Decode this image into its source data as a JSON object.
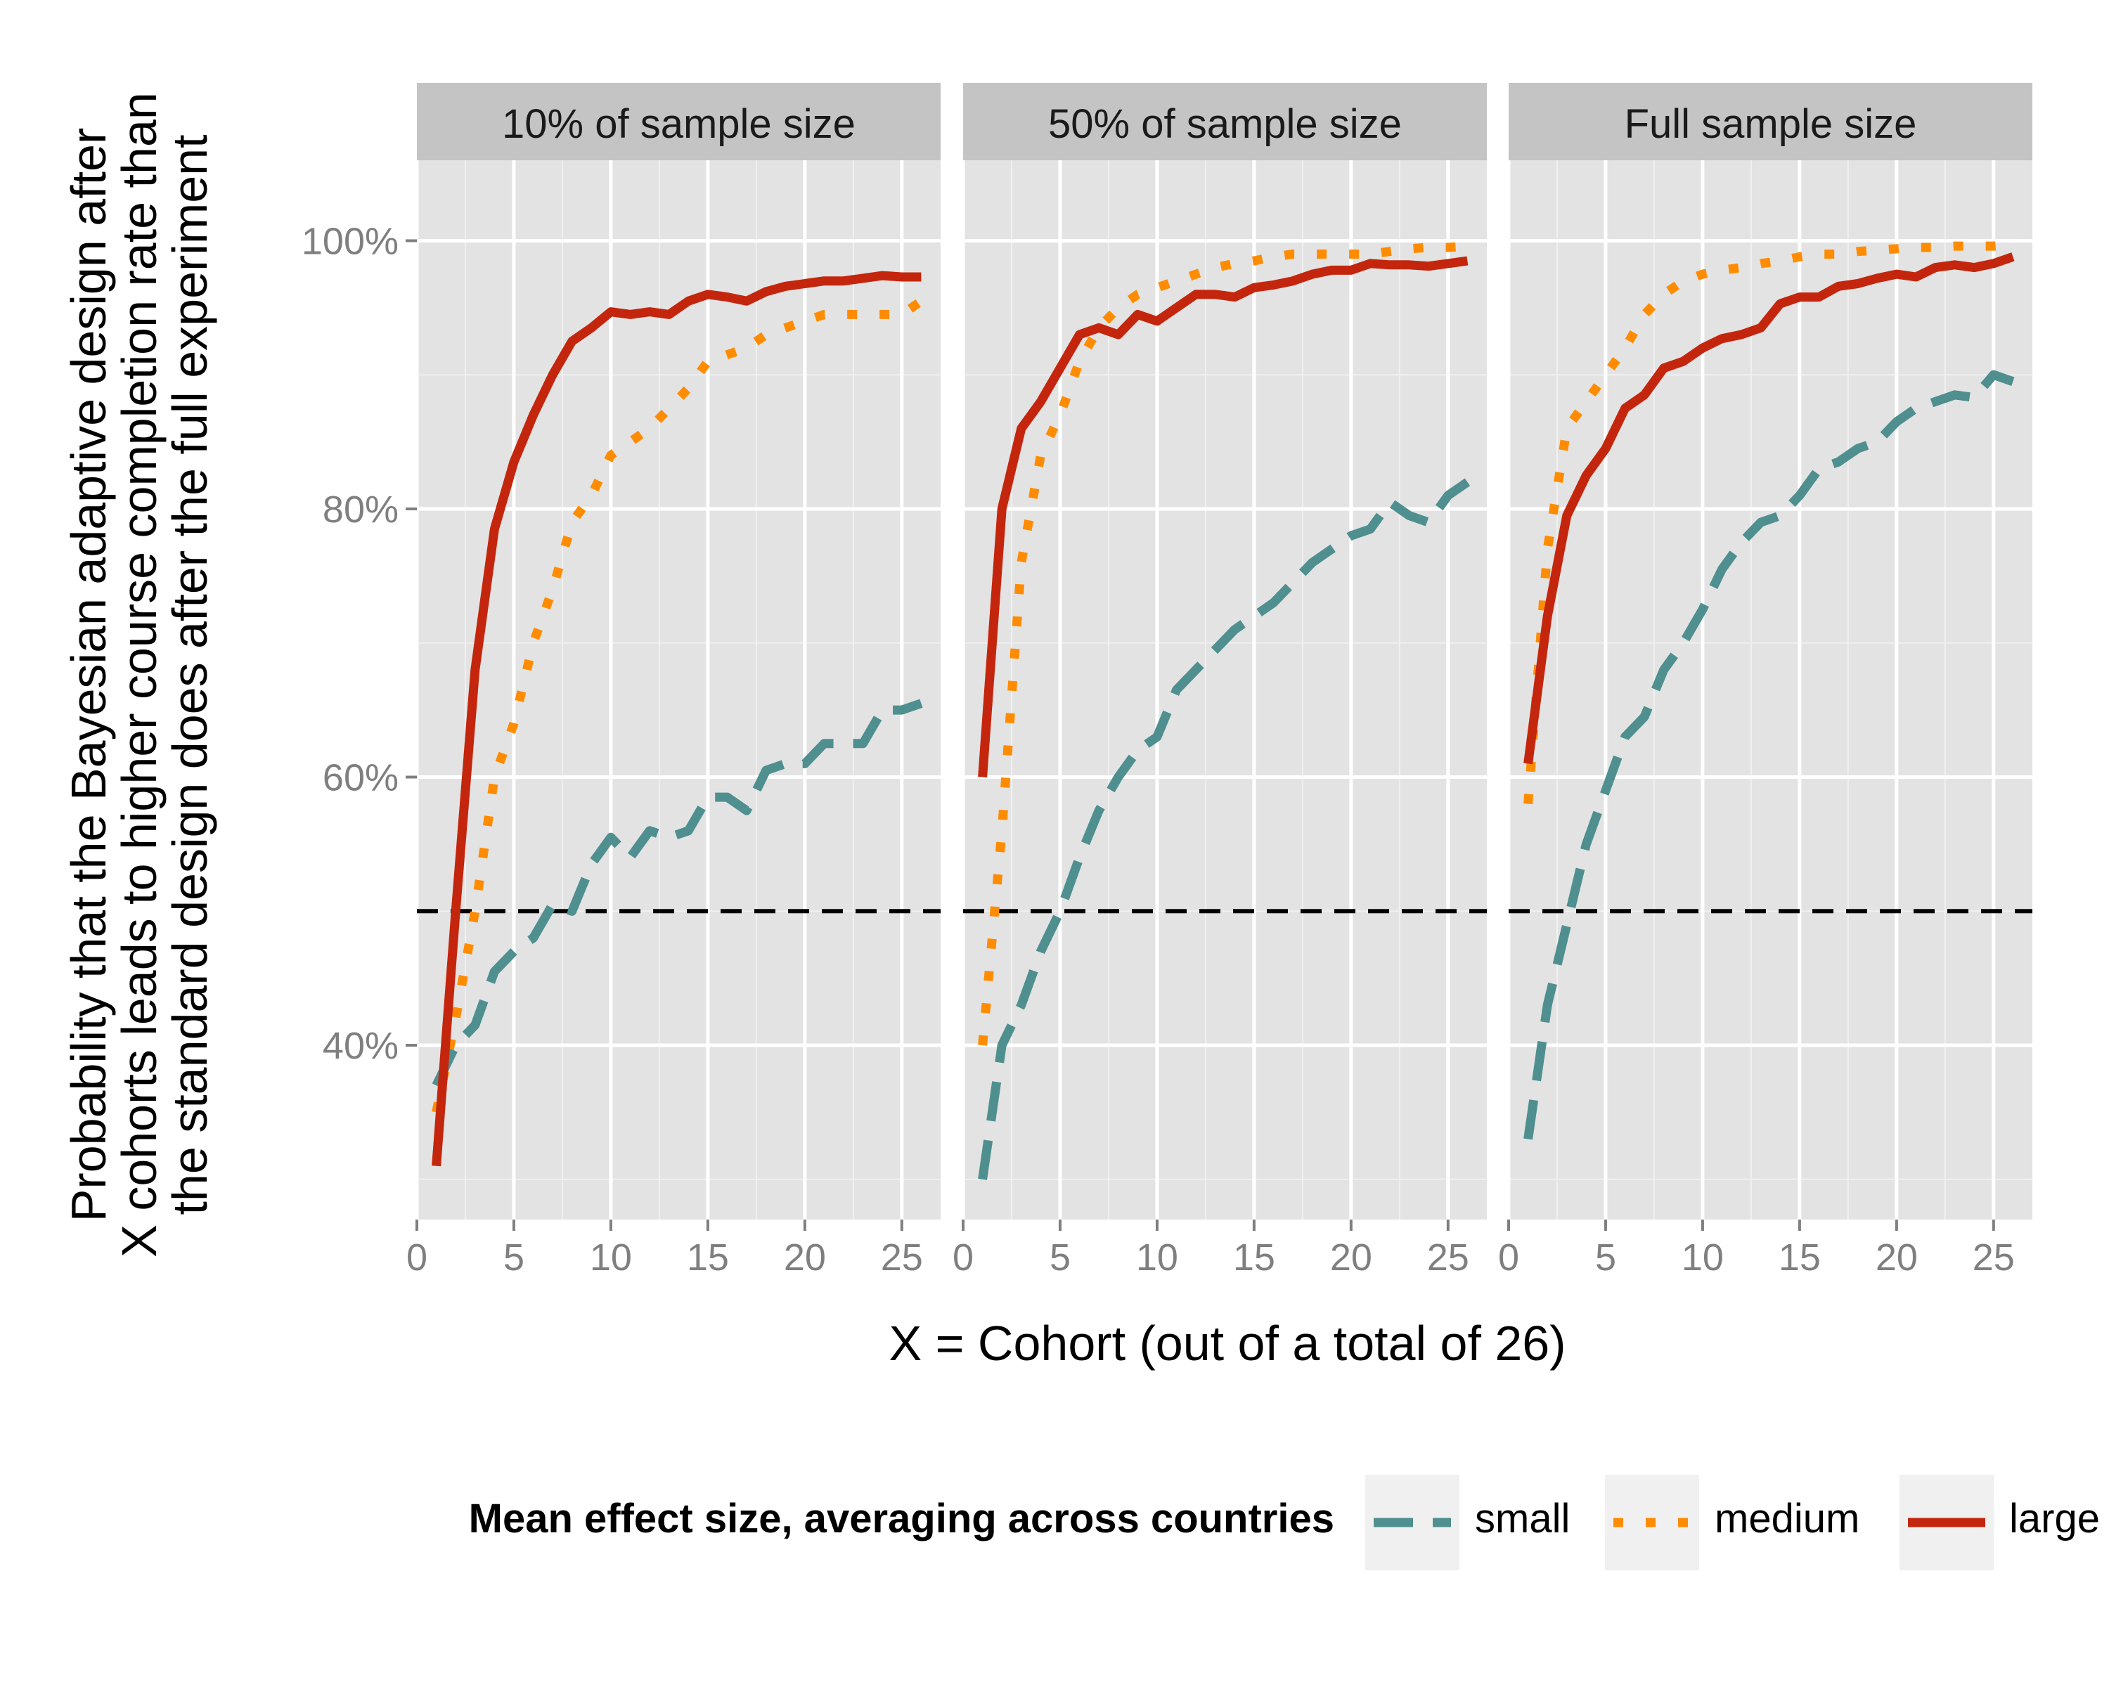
{
  "chart_data": {
    "type": "line",
    "xlabel": "X = Cohort (out of a total of 26)",
    "ylabel_lines": [
      "Probability that the Bayesian adaptive design after",
      "X cohorts leads to higher course completion rate than",
      "the standard design does after the full experiment"
    ],
    "xlim": [
      0,
      27
    ],
    "ylim": [
      0.27,
      1.06
    ],
    "x_ticks": [
      0,
      5,
      10,
      15,
      20,
      25
    ],
    "y_ticks": [
      0.4,
      0.6,
      0.8,
      1.0
    ],
    "y_tick_labels": [
      "40%",
      "60%",
      "80%",
      "100%"
    ],
    "reference_line": {
      "y": 0.5,
      "style": "dashed"
    },
    "legend": {
      "title": "Mean effect size, averaging across countries",
      "position": "bottom"
    },
    "x": [
      1,
      2,
      3,
      4,
      5,
      6,
      7,
      8,
      9,
      10,
      11,
      12,
      13,
      14,
      15,
      16,
      17,
      18,
      19,
      20,
      21,
      22,
      23,
      24,
      25,
      26
    ],
    "panels": [
      {
        "title": "10% of sample size",
        "series": [
          {
            "name": "small",
            "color": "#4f8f8f",
            "dash": "dashed",
            "values": [
              0.37,
              0.4,
              0.415,
              0.455,
              0.47,
              0.48,
              0.505,
              0.5,
              0.535,
              0.555,
              0.54,
              0.56,
              0.555,
              0.56,
              0.585,
              0.585,
              0.575,
              0.605,
              0.61,
              0.61,
              0.625,
              0.625,
              0.625,
              0.65,
              0.65,
              0.655
            ]
          },
          {
            "name": "medium",
            "color": "#ff8c00",
            "dash": "dotted",
            "values": [
              0.35,
              0.42,
              0.5,
              0.6,
              0.64,
              0.7,
              0.74,
              0.79,
              0.81,
              0.84,
              0.85,
              0.86,
              0.875,
              0.89,
              0.91,
              0.915,
              0.92,
              0.93,
              0.935,
              0.94,
              0.945,
              0.945,
              0.945,
              0.945,
              0.945,
              0.955
            ]
          },
          {
            "name": "large",
            "color": "#c4260d",
            "dash": "solid",
            "values": [
              0.31,
              0.5,
              0.68,
              0.785,
              0.835,
              0.87,
              0.9,
              0.925,
              0.935,
              0.947,
              0.945,
              0.947,
              0.945,
              0.955,
              0.96,
              0.958,
              0.955,
              0.962,
              0.966,
              0.968,
              0.97,
              0.97,
              0.972,
              0.974,
              0.973,
              0.973
            ]
          }
        ]
      },
      {
        "title": "50% of sample size",
        "series": [
          {
            "name": "small",
            "color": "#4f8f8f",
            "dash": "dashed",
            "values": [
              0.3,
              0.4,
              0.43,
              0.47,
              0.5,
              0.54,
              0.575,
              0.6,
              0.62,
              0.63,
              0.665,
              0.68,
              0.695,
              0.71,
              0.72,
              0.73,
              0.745,
              0.76,
              0.77,
              0.78,
              0.785,
              0.805,
              0.795,
              0.79,
              0.81,
              0.82
            ]
          },
          {
            "name": "medium",
            "color": "#ff8c00",
            "dash": "dotted",
            "values": [
              0.4,
              0.56,
              0.76,
              0.84,
              0.87,
              0.91,
              0.935,
              0.95,
              0.96,
              0.965,
              0.97,
              0.975,
              0.98,
              0.983,
              0.985,
              0.988,
              0.99,
              0.99,
              0.99,
              0.99,
              0.99,
              0.992,
              0.994,
              0.995,
              0.995,
              0.996
            ]
          },
          {
            "name": "large",
            "color": "#c4260d",
            "dash": "solid",
            "values": [
              0.6,
              0.8,
              0.86,
              0.88,
              0.905,
              0.93,
              0.935,
              0.93,
              0.945,
              0.94,
              0.95,
              0.96,
              0.96,
              0.958,
              0.965,
              0.967,
              0.97,
              0.975,
              0.978,
              0.978,
              0.983,
              0.982,
              0.982,
              0.981,
              0.983,
              0.985
            ]
          }
        ]
      },
      {
        "title": "Full sample size",
        "series": [
          {
            "name": "small",
            "color": "#4f8f8f",
            "dash": "dashed",
            "values": [
              0.33,
              0.43,
              0.49,
              0.55,
              0.59,
              0.63,
              0.645,
              0.68,
              0.7,
              0.725,
              0.755,
              0.775,
              0.79,
              0.795,
              0.81,
              0.83,
              0.835,
              0.845,
              0.85,
              0.865,
              0.875,
              0.88,
              0.885,
              0.883,
              0.9,
              0.895
            ]
          },
          {
            "name": "medium",
            "color": "#ff8c00",
            "dash": "dotted",
            "values": [
              0.58,
              0.77,
              0.86,
              0.88,
              0.9,
              0.92,
              0.945,
              0.96,
              0.97,
              0.975,
              0.978,
              0.98,
              0.983,
              0.985,
              0.988,
              0.99,
              0.99,
              0.992,
              0.993,
              0.994,
              0.995,
              0.995,
              0.996,
              0.996,
              0.996,
              0.997
            ]
          },
          {
            "name": "large",
            "color": "#c4260d",
            "dash": "solid",
            "values": [
              0.61,
              0.72,
              0.795,
              0.825,
              0.845,
              0.875,
              0.885,
              0.905,
              0.91,
              0.92,
              0.927,
              0.93,
              0.935,
              0.953,
              0.958,
              0.958,
              0.966,
              0.968,
              0.972,
              0.975,
              0.973,
              0.98,
              0.982,
              0.98,
              0.983,
              0.988
            ]
          }
        ]
      }
    ]
  }
}
